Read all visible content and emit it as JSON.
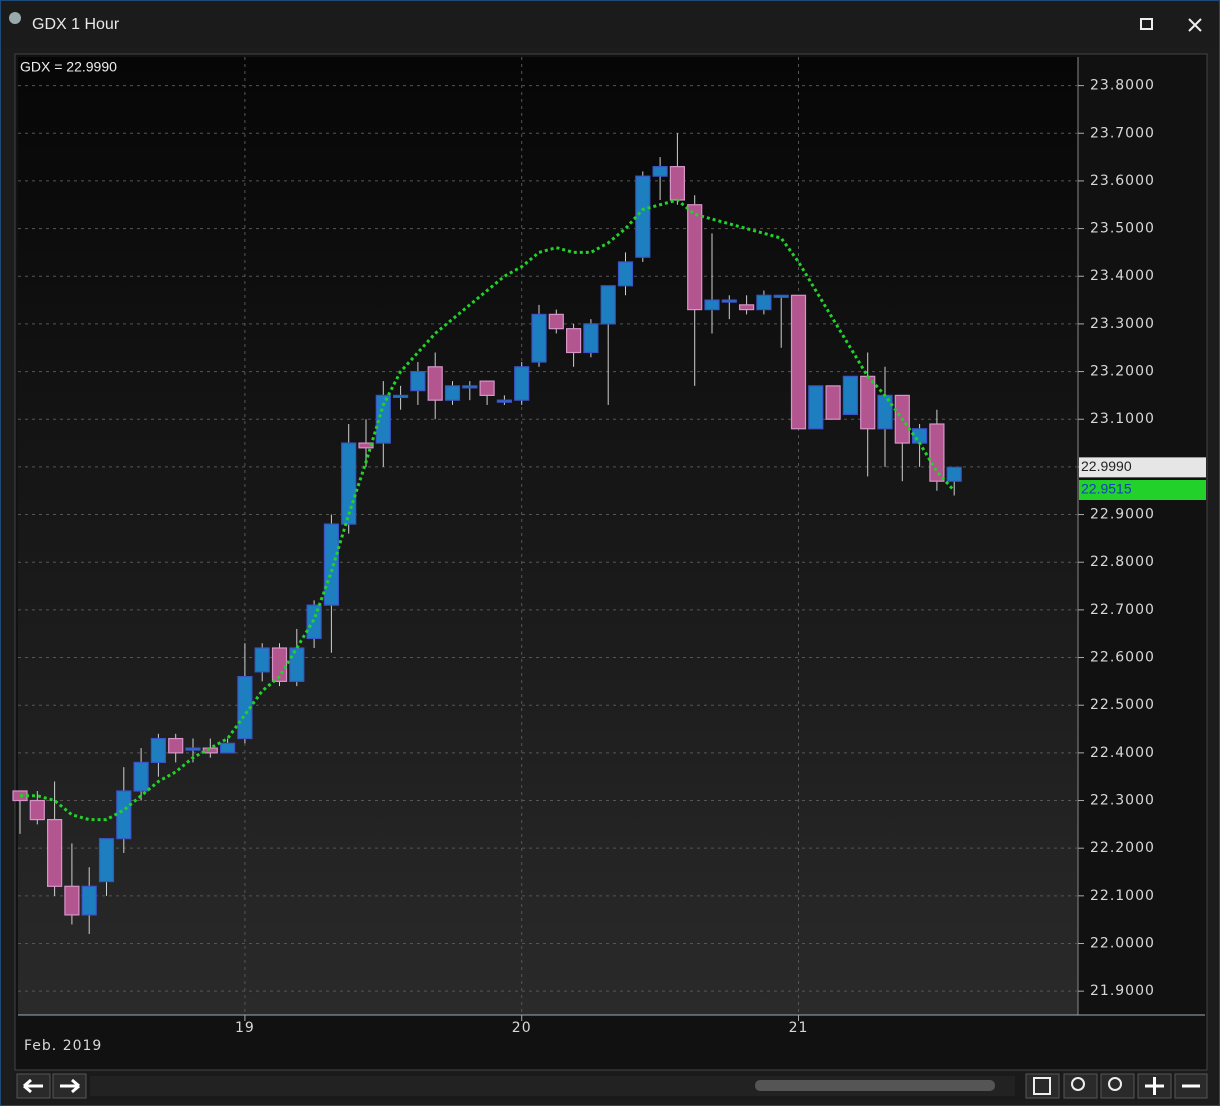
{
  "window": {
    "title": "GDX 1 Hour"
  },
  "chart_data": {
    "type": "candlestick",
    "legend_label": "GDX = 22.9990",
    "x_label": "Feb. 2019",
    "categories": [
      null,
      null,
      null,
      null,
      null,
      null,
      null,
      null,
      null,
      null,
      null,
      null,
      null,
      "19",
      null,
      null,
      null,
      null,
      null,
      null,
      null,
      null,
      null,
      null,
      null,
      null,
      null,
      null,
      null,
      "20",
      null,
      null,
      null,
      null,
      null,
      null,
      null,
      null,
      null,
      null,
      null,
      null,
      null,
      null,
      null,
      "21",
      null,
      null,
      null,
      null,
      null,
      null,
      null,
      null,
      null
    ],
    "open": [
      22.32,
      22.3,
      22.26,
      22.12,
      22.06,
      22.13,
      22.22,
      22.32,
      22.38,
      22.43,
      22.41,
      22.41,
      22.4,
      22.43,
      22.57,
      22.62,
      22.55,
      22.64,
      22.71,
      22.88,
      23.05,
      23.05,
      23.15,
      23.16,
      23.21,
      23.14,
      23.17,
      23.18,
      23.14,
      23.14,
      23.22,
      23.32,
      23.29,
      23.24,
      23.3,
      23.38,
      23.44,
      23.61,
      23.63,
      23.55,
      23.33,
      23.35,
      23.34,
      23.33,
      23.36,
      23.36,
      23.08,
      23.17,
      23.11,
      23.19,
      23.08,
      23.15,
      23.05,
      23.09,
      22.97
    ],
    "high": [
      22.32,
      22.32,
      22.34,
      22.21,
      22.16,
      22.22,
      22.37,
      22.41,
      22.44,
      22.44,
      22.43,
      22.43,
      22.43,
      22.63,
      22.63,
      22.63,
      22.66,
      22.72,
      22.9,
      23.09,
      23.1,
      23.18,
      23.17,
      23.22,
      23.24,
      23.18,
      23.18,
      23.18,
      23.15,
      23.22,
      23.34,
      23.33,
      23.3,
      23.31,
      23.38,
      23.45,
      23.62,
      23.65,
      23.7,
      23.57,
      23.49,
      23.36,
      23.36,
      23.37,
      23.36,
      23.36,
      23.17,
      23.17,
      23.19,
      23.24,
      23.21,
      23.15,
      23.09,
      23.12,
      23.0
    ],
    "low": [
      22.23,
      22.25,
      22.1,
      22.04,
      22.02,
      22.1,
      22.19,
      22.3,
      22.35,
      22.38,
      22.38,
      22.39,
      22.4,
      22.42,
      22.55,
      22.54,
      22.54,
      22.62,
      22.61,
      22.86,
      23.0,
      23.0,
      23.12,
      23.13,
      23.1,
      23.13,
      23.14,
      23.13,
      23.13,
      23.13,
      23.21,
      23.28,
      23.21,
      23.23,
      23.13,
      23.36,
      23.43,
      23.56,
      23.55,
      23.17,
      23.28,
      23.31,
      23.32,
      23.32,
      23.25,
      23.08,
      23.08,
      23.1,
      23.11,
      22.98,
      23.0,
      22.97,
      23.0,
      22.95,
      22.94
    ],
    "close": [
      22.3,
      22.26,
      22.12,
      22.06,
      22.12,
      22.22,
      22.32,
      22.38,
      22.43,
      22.4,
      22.41,
      22.4,
      22.42,
      22.56,
      22.62,
      22.55,
      22.62,
      22.71,
      22.88,
      23.05,
      23.04,
      23.15,
      23.15,
      23.2,
      23.14,
      23.17,
      23.17,
      23.15,
      23.14,
      23.21,
      23.32,
      23.29,
      23.24,
      23.3,
      23.38,
      23.43,
      23.61,
      23.63,
      23.56,
      23.33,
      23.35,
      23.35,
      23.33,
      23.36,
      23.36,
      23.08,
      23.17,
      23.1,
      23.19,
      23.08,
      23.15,
      23.05,
      23.08,
      22.97,
      22.999
    ],
    "up_color": "#1e7fc0",
    "down_color": "#b3558f",
    "moving_average": {
      "color": "#22d12a",
      "values": [
        22.31,
        22.31,
        22.3,
        22.27,
        22.26,
        22.26,
        22.28,
        22.31,
        22.34,
        22.36,
        22.39,
        22.41,
        22.43,
        22.48,
        22.53,
        22.56,
        22.62,
        22.68,
        22.78,
        22.9,
        23.01,
        23.13,
        23.2,
        23.24,
        23.28,
        23.31,
        23.34,
        23.37,
        23.4,
        23.42,
        23.45,
        23.46,
        23.45,
        23.45,
        23.47,
        23.5,
        23.54,
        23.55,
        23.56,
        23.53,
        23.52,
        23.51,
        23.5,
        23.49,
        23.48,
        23.43,
        23.37,
        23.31,
        23.25,
        23.19,
        23.15,
        23.1,
        23.05,
        22.99,
        22.95
      ]
    },
    "last_price": {
      "value": 22.999,
      "label": "22.9990"
    },
    "ma_price": {
      "value": 22.9515,
      "label": "22.9515"
    },
    "ylim": [
      21.85,
      23.86
    ],
    "yticks": [
      {
        "value": 21.9,
        "label": "21.9000"
      },
      {
        "value": 22.0,
        "label": "22.0000"
      },
      {
        "value": 22.1,
        "label": "22.1000"
      },
      {
        "value": 22.2,
        "label": "22.2000"
      },
      {
        "value": 22.3,
        "label": "22.3000"
      },
      {
        "value": 22.4,
        "label": "22.4000"
      },
      {
        "value": 22.5,
        "label": "22.5000"
      },
      {
        "value": 22.6,
        "label": "22.6000"
      },
      {
        "value": 22.7,
        "label": "22.7000"
      },
      {
        "value": 22.8,
        "label": "22.8000"
      },
      {
        "value": 22.9,
        "label": "22.9000"
      },
      {
        "value": 23.0,
        "label": "23.0000"
      },
      {
        "value": 23.1,
        "label": "23.1000"
      },
      {
        "value": 23.2,
        "label": "23.2000"
      },
      {
        "value": 23.3,
        "label": "23.3000"
      },
      {
        "value": 23.4,
        "label": "23.4000"
      },
      {
        "value": 23.5,
        "label": "23.5000"
      },
      {
        "value": 23.6,
        "label": "23.6000"
      },
      {
        "value": 23.7,
        "label": "23.7000"
      },
      {
        "value": 23.8,
        "label": "23.8000"
      }
    ],
    "grid": true
  }
}
